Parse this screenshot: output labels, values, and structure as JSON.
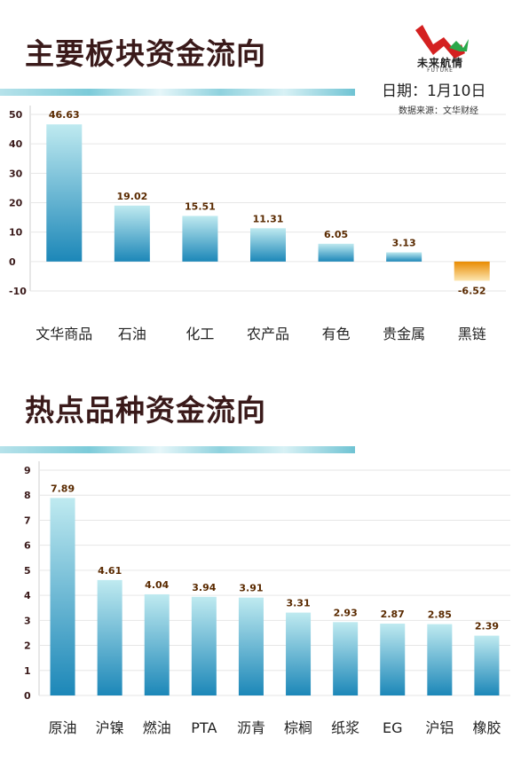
{
  "header": {
    "title1": "主要板块资金流向",
    "title2": "热点品种资金流向",
    "date": "日期：1月10日",
    "source": "数据来源：文华财经",
    "logo_cn": "未来航情",
    "logo_en": "FUTURE"
  },
  "colors": {
    "bar_top": "#bfeaf0",
    "bar_bottom": "#1c87b8",
    "neg_top": "#e88a00",
    "neg_bottom": "#fde6b0"
  },
  "chart_data": [
    {
      "type": "bar",
      "title": "主要板块资金流向",
      "categories": [
        "文华商品",
        "石油",
        "化工",
        "农产品",
        "有色",
        "贵金属",
        "黑链"
      ],
      "values": [
        46.63,
        19.02,
        15.51,
        11.31,
        6.05,
        3.13,
        -6.52
      ],
      "value_labels": [
        "46.63",
        "19.02",
        "15.51",
        "11.31",
        "6.05",
        "3.13",
        "-6.52"
      ],
      "yticks": [
        "-10",
        "0",
        "10",
        "20",
        "30",
        "40",
        "50"
      ],
      "ylim": [
        -10,
        50
      ],
      "grid": true
    },
    {
      "type": "bar",
      "title": "热点品种资金流向",
      "categories": [
        "原油",
        "沪镍",
        "燃油",
        "PTA",
        "沥青",
        "棕榈",
        "纸浆",
        "EG",
        "沪铝",
        "橡胶"
      ],
      "values": [
        7.89,
        4.61,
        4.04,
        3.94,
        3.91,
        3.31,
        2.93,
        2.87,
        2.85,
        2.39
      ],
      "value_labels": [
        "7.89",
        "4.61",
        "4.04",
        "3.94",
        "3.91",
        "3.31",
        "2.93",
        "2.87",
        "2.85",
        "2.39"
      ],
      "yticks": [
        "0",
        "1",
        "2",
        "3",
        "4",
        "5",
        "6",
        "7",
        "8",
        "9"
      ],
      "ylim": [
        0,
        9
      ],
      "grid": true
    }
  ]
}
